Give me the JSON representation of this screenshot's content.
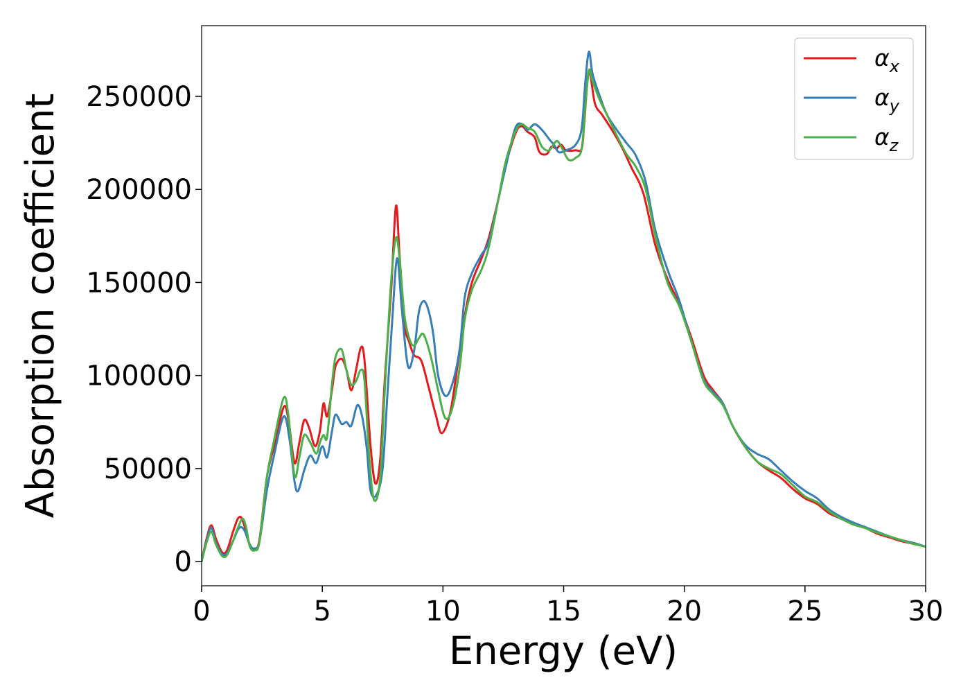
{
  "chart_data": {
    "type": "line",
    "xlabel": "Energy (eV)",
    "ylabel": "Absorption coefficient",
    "xlim": [
      0,
      30
    ],
    "ylim": [
      -13000,
      288000
    ],
    "xticks": [
      0,
      5,
      10,
      15,
      20,
      25,
      30
    ],
    "xtick_labels": [
      "0",
      "5",
      "10",
      "15",
      "20",
      "25",
      "30"
    ],
    "yticks": [
      0,
      50000,
      100000,
      150000,
      200000,
      250000
    ],
    "ytick_labels": [
      "0",
      "50000",
      "100000",
      "150000",
      "200000",
      "250000"
    ],
    "grid": false,
    "legend_position": "top-right",
    "series": [
      {
        "name": "α_x",
        "legend_base": "α",
        "legend_sub": "x",
        "color": "#e41a1c",
        "points": [
          [
            0,
            0
          ],
          [
            0.2,
            12000
          ],
          [
            0.4,
            19500
          ],
          [
            0.6,
            12000
          ],
          [
            0.85,
            5000
          ],
          [
            1.05,
            6000
          ],
          [
            1.3,
            16000
          ],
          [
            1.5,
            23000
          ],
          [
            1.65,
            23500
          ],
          [
            1.8,
            18000
          ],
          [
            2.0,
            9000
          ],
          [
            2.2,
            7000
          ],
          [
            2.4,
            12000
          ],
          [
            2.7,
            45000
          ],
          [
            3.0,
            62000
          ],
          [
            3.4,
            83000
          ],
          [
            3.6,
            76000
          ],
          [
            3.85,
            53000
          ],
          [
            4.05,
            64000
          ],
          [
            4.25,
            76000
          ],
          [
            4.45,
            72000
          ],
          [
            4.7,
            62000
          ],
          [
            4.9,
            70000
          ],
          [
            5.05,
            85000
          ],
          [
            5.2,
            78000
          ],
          [
            5.4,
            92000
          ],
          [
            5.55,
            105000
          ],
          [
            5.8,
            109000
          ],
          [
            6.0,
            103000
          ],
          [
            6.2,
            92000
          ],
          [
            6.4,
            103000
          ],
          [
            6.6,
            115000
          ],
          [
            6.75,
            108000
          ],
          [
            7.0,
            62000
          ],
          [
            7.2,
            42000
          ],
          [
            7.4,
            55000
          ],
          [
            7.6,
            100000
          ],
          [
            7.85,
            145000
          ],
          [
            8.05,
            191000
          ],
          [
            8.2,
            165000
          ],
          [
            8.4,
            128000
          ],
          [
            8.6,
            118000
          ],
          [
            8.8,
            111000
          ],
          [
            9.1,
            108000
          ],
          [
            9.4,
            94000
          ],
          [
            9.7,
            79000
          ],
          [
            9.95,
            69000
          ],
          [
            10.3,
            80000
          ],
          [
            10.6,
            105000
          ],
          [
            10.9,
            132000
          ],
          [
            11.2,
            150000
          ],
          [
            11.6,
            163000
          ],
          [
            11.9,
            174000
          ],
          [
            12.3,
            195000
          ],
          [
            12.6,
            213000
          ],
          [
            13.0,
            230000
          ],
          [
            13.25,
            234000
          ],
          [
            13.5,
            231000
          ],
          [
            13.8,
            228000
          ],
          [
            14.0,
            220000
          ],
          [
            14.3,
            219000
          ],
          [
            14.5,
            223000
          ],
          [
            14.7,
            222000
          ],
          [
            14.9,
            224000
          ],
          [
            15.1,
            221000
          ],
          [
            15.5,
            221000
          ],
          [
            15.75,
            222000
          ],
          [
            15.85,
            235000
          ],
          [
            16.0,
            260000
          ],
          [
            16.1,
            262000
          ],
          [
            16.3,
            246000
          ],
          [
            16.6,
            240000
          ],
          [
            17.0,
            232000
          ],
          [
            17.4,
            223000
          ],
          [
            17.8,
            212000
          ],
          [
            18.3,
            198000
          ],
          [
            18.8,
            170000
          ],
          [
            19.3,
            152000
          ],
          [
            19.8,
            138000
          ],
          [
            20.3,
            120000
          ],
          [
            20.8,
            100000
          ],
          [
            21.2,
            92000
          ],
          [
            21.6,
            85000
          ],
          [
            22.0,
            73000
          ],
          [
            22.5,
            62000
          ],
          [
            23.0,
            54000
          ],
          [
            23.5,
            49000
          ],
          [
            24.0,
            45000
          ],
          [
            24.5,
            39000
          ],
          [
            25.0,
            34000
          ],
          [
            25.5,
            31000
          ],
          [
            26.0,
            26000
          ],
          [
            26.5,
            23000
          ],
          [
            27.0,
            20000
          ],
          [
            27.5,
            18000
          ],
          [
            28.0,
            15000
          ],
          [
            28.5,
            13000
          ],
          [
            29.0,
            11000
          ],
          [
            29.5,
            9500
          ],
          [
            30.0,
            8000
          ]
        ]
      },
      {
        "name": "α_y",
        "legend_base": "α",
        "legend_sub": "y",
        "color": "#377eb8",
        "points": [
          [
            0,
            0
          ],
          [
            0.2,
            11000
          ],
          [
            0.4,
            18000
          ],
          [
            0.6,
            10000
          ],
          [
            0.85,
            4000
          ],
          [
            1.05,
            4500
          ],
          [
            1.3,
            11000
          ],
          [
            1.5,
            17000
          ],
          [
            1.65,
            18500
          ],
          [
            1.8,
            16000
          ],
          [
            2.0,
            9000
          ],
          [
            2.2,
            7000
          ],
          [
            2.4,
            11000
          ],
          [
            2.7,
            38000
          ],
          [
            3.0,
            57000
          ],
          [
            3.4,
            78000
          ],
          [
            3.65,
            65000
          ],
          [
            3.85,
            43000
          ],
          [
            4.0,
            38000
          ],
          [
            4.25,
            49000
          ],
          [
            4.5,
            57000
          ],
          [
            4.75,
            53000
          ],
          [
            5.0,
            62000
          ],
          [
            5.2,
            56000
          ],
          [
            5.4,
            70000
          ],
          [
            5.55,
            79000
          ],
          [
            5.8,
            74000
          ],
          [
            6.0,
            75000
          ],
          [
            6.2,
            73000
          ],
          [
            6.45,
            84000
          ],
          [
            6.65,
            78000
          ],
          [
            6.85,
            60000
          ],
          [
            7.0,
            38000
          ],
          [
            7.25,
            36000
          ],
          [
            7.5,
            50000
          ],
          [
            7.7,
            90000
          ],
          [
            7.9,
            130000
          ],
          [
            8.1,
            163000
          ],
          [
            8.3,
            135000
          ],
          [
            8.55,
            105000
          ],
          [
            8.8,
            113000
          ],
          [
            9.0,
            134000
          ],
          [
            9.2,
            140000
          ],
          [
            9.4,
            135000
          ],
          [
            9.6,
            122000
          ],
          [
            9.8,
            100000
          ],
          [
            10.1,
            89000
          ],
          [
            10.4,
            96000
          ],
          [
            10.7,
            115000
          ],
          [
            10.9,
            142000
          ],
          [
            11.2,
            155000
          ],
          [
            11.6,
            165000
          ],
          [
            11.9,
            172000
          ],
          [
            12.3,
            195000
          ],
          [
            12.6,
            212000
          ],
          [
            13.0,
            233000
          ],
          [
            13.3,
            235000
          ],
          [
            13.5,
            232000
          ],
          [
            13.8,
            235000
          ],
          [
            14.1,
            232000
          ],
          [
            14.4,
            227000
          ],
          [
            14.6,
            224000
          ],
          [
            14.8,
            220000
          ],
          [
            15.1,
            221000
          ],
          [
            15.5,
            224000
          ],
          [
            15.75,
            233000
          ],
          [
            15.9,
            258000
          ],
          [
            16.05,
            274000
          ],
          [
            16.2,
            262000
          ],
          [
            16.5,
            250000
          ],
          [
            16.8,
            240000
          ],
          [
            17.2,
            232000
          ],
          [
            17.6,
            225000
          ],
          [
            18.0,
            218000
          ],
          [
            18.4,
            204000
          ],
          [
            18.8,
            178000
          ],
          [
            19.3,
            157000
          ],
          [
            19.8,
            140000
          ],
          [
            20.3,
            118000
          ],
          [
            20.8,
            98000
          ],
          [
            21.2,
            91000
          ],
          [
            21.6,
            85000
          ],
          [
            22.0,
            73000
          ],
          [
            22.5,
            63000
          ],
          [
            23.0,
            58000
          ],
          [
            23.5,
            55000
          ],
          [
            24.0,
            49000
          ],
          [
            24.5,
            43000
          ],
          [
            25.0,
            38000
          ],
          [
            25.5,
            34000
          ],
          [
            26.0,
            28000
          ],
          [
            26.5,
            24000
          ],
          [
            27.0,
            21000
          ],
          [
            27.5,
            18500
          ],
          [
            28.0,
            16000
          ],
          [
            28.5,
            13500
          ],
          [
            29.0,
            11500
          ],
          [
            29.5,
            10000
          ],
          [
            30.0,
            8000
          ]
        ]
      },
      {
        "name": "α_z",
        "legend_base": "α",
        "legend_sub": "z",
        "color": "#4daf4a",
        "points": [
          [
            0,
            0
          ],
          [
            0.2,
            10000
          ],
          [
            0.4,
            16000
          ],
          [
            0.6,
            9000
          ],
          [
            0.85,
            3000
          ],
          [
            1.05,
            3500
          ],
          [
            1.3,
            11000
          ],
          [
            1.5,
            18000
          ],
          [
            1.7,
            23000
          ],
          [
            1.85,
            18000
          ],
          [
            2.0,
            8000
          ],
          [
            2.2,
            6000
          ],
          [
            2.4,
            11000
          ],
          [
            2.7,
            45000
          ],
          [
            3.0,
            65000
          ],
          [
            3.4,
            88000
          ],
          [
            3.6,
            78000
          ],
          [
            3.85,
            46000
          ],
          [
            4.05,
            56000
          ],
          [
            4.25,
            68000
          ],
          [
            4.5,
            64000
          ],
          [
            4.75,
            58000
          ],
          [
            4.9,
            64000
          ],
          [
            5.05,
            68000
          ],
          [
            5.2,
            67000
          ],
          [
            5.4,
            95000
          ],
          [
            5.55,
            110000
          ],
          [
            5.8,
            114000
          ],
          [
            6.0,
            103000
          ],
          [
            6.2,
            95000
          ],
          [
            6.4,
            97000
          ],
          [
            6.6,
            103000
          ],
          [
            6.75,
            97000
          ],
          [
            6.95,
            55000
          ],
          [
            7.15,
            33000
          ],
          [
            7.4,
            45000
          ],
          [
            7.6,
            95000
          ],
          [
            7.85,
            150000
          ],
          [
            8.05,
            174000
          ],
          [
            8.2,
            163000
          ],
          [
            8.4,
            133000
          ],
          [
            8.6,
            120000
          ],
          [
            8.8,
            116000
          ],
          [
            9.0,
            120000
          ],
          [
            9.2,
            122000
          ],
          [
            9.5,
            110000
          ],
          [
            9.8,
            92000
          ],
          [
            10.1,
            77000
          ],
          [
            10.4,
            83000
          ],
          [
            10.7,
            105000
          ],
          [
            10.9,
            130000
          ],
          [
            11.2,
            146000
          ],
          [
            11.6,
            157000
          ],
          [
            11.9,
            169000
          ],
          [
            12.3,
            195000
          ],
          [
            12.6,
            215000
          ],
          [
            13.0,
            231000
          ],
          [
            13.25,
            235000
          ],
          [
            13.5,
            233000
          ],
          [
            13.8,
            231000
          ],
          [
            14.1,
            223000
          ],
          [
            14.4,
            221000
          ],
          [
            14.7,
            226000
          ],
          [
            14.9,
            223000
          ],
          [
            15.2,
            216000
          ],
          [
            15.5,
            217000
          ],
          [
            15.75,
            222000
          ],
          [
            15.9,
            245000
          ],
          [
            16.05,
            264000
          ],
          [
            16.2,
            258000
          ],
          [
            16.5,
            248000
          ],
          [
            16.8,
            240000
          ],
          [
            17.2,
            229000
          ],
          [
            17.6,
            219000
          ],
          [
            18.0,
            212000
          ],
          [
            18.4,
            200000
          ],
          [
            18.8,
            175000
          ],
          [
            19.3,
            150000
          ],
          [
            19.8,
            137000
          ],
          [
            20.3,
            118000
          ],
          [
            20.8,
            97000
          ],
          [
            21.2,
            90000
          ],
          [
            21.6,
            84000
          ],
          [
            22.0,
            73000
          ],
          [
            22.5,
            62000
          ],
          [
            23.0,
            54000
          ],
          [
            23.5,
            50000
          ],
          [
            24.0,
            47000
          ],
          [
            24.5,
            41000
          ],
          [
            25.0,
            35000
          ],
          [
            25.5,
            32000
          ],
          [
            26.0,
            27000
          ],
          [
            26.5,
            23000
          ],
          [
            27.0,
            20000
          ],
          [
            27.5,
            18000
          ],
          [
            28.0,
            15500
          ],
          [
            28.5,
            13500
          ],
          [
            29.0,
            11500
          ],
          [
            29.5,
            9500
          ],
          [
            30.0,
            8000
          ]
        ]
      }
    ]
  }
}
